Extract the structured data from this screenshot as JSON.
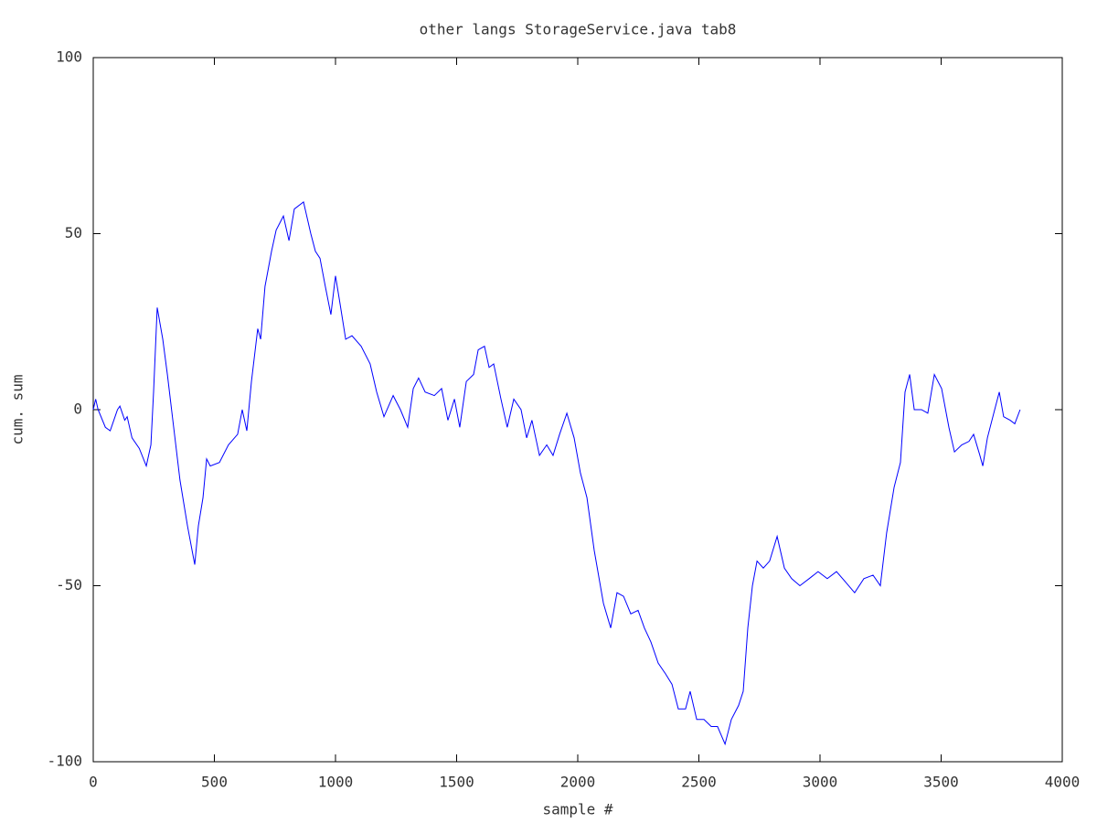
{
  "chart_data": {
    "type": "line",
    "title": "other langs StorageService.java tab8",
    "x_label": "sample #",
    "y_label": "cum. sum",
    "xlim": [
      0,
      4000
    ],
    "ylim": [
      -100,
      100
    ],
    "xticks": [
      0,
      500,
      1000,
      1500,
      2000,
      2500,
      3000,
      3500,
      4000
    ],
    "yticks": [
      -100,
      -50,
      0,
      50,
      100
    ],
    "grid": false,
    "series": [
      {
        "color": "#0000ff",
        "x": [
          0,
          10,
          20,
          50,
          70,
          90,
          100,
          110,
          130,
          140,
          160,
          190,
          219,
          238,
          249,
          264,
          287,
          306,
          332,
          358,
          389,
          408,
          419,
          434,
          453,
          468,
          483,
          521,
          558,
          596,
          615,
          634,
          653,
          679,
          691,
          709,
          736,
          755,
          785,
          808,
          830,
          868,
          898,
          917,
          936,
          958,
          981,
          1000,
          1019,
          1042,
          1068,
          1106,
          1143,
          1170,
          1200,
          1238,
          1268,
          1298,
          1321,
          1343,
          1370,
          1408,
          1438,
          1464,
          1491,
          1513,
          1540,
          1570,
          1589,
          1615,
          1634,
          1653,
          1683,
          1709,
          1736,
          1766,
          1789,
          1811,
          1842,
          1872,
          1898,
          1925,
          1955,
          1985,
          2011,
          2038,
          2068,
          2106,
          2136,
          2162,
          2189,
          2219,
          2249,
          2275,
          2302,
          2332,
          2362,
          2389,
          2415,
          2445,
          2464,
          2491,
          2521,
          2551,
          2577,
          2608,
          2634,
          2664,
          2683,
          2702,
          2721,
          2740,
          2766,
          2792,
          2823,
          2853,
          2883,
          2917,
          2955,
          2992,
          3030,
          3068,
          3106,
          3143,
          3181,
          3219,
          3249,
          3275,
          3306,
          3332,
          3351,
          3370,
          3389,
          3419,
          3445,
          3472,
          3502,
          3532,
          3555,
          3585,
          3615,
          3634,
          3660,
          3672,
          3691,
          3721,
          3740,
          3758,
          3785,
          3804,
          3826
        ],
        "values": [
          0,
          3,
          0,
          -5,
          -6,
          -2,
          0,
          1,
          -3,
          -2,
          -8,
          -11,
          -16,
          -10,
          5,
          29,
          20,
          10,
          -5,
          -20,
          -33,
          -40,
          -44,
          -33,
          -25,
          -14,
          -16,
          -15,
          -10,
          -7,
          0,
          -6,
          8,
          23,
          20,
          35,
          45,
          51,
          55,
          48,
          57,
          59,
          50,
          45,
          43,
          35,
          27,
          38,
          30,
          20,
          21,
          18,
          13,
          5,
          -2,
          4,
          0,
          -5,
          6,
          9,
          5,
          4,
          6,
          -3,
          3,
          -5,
          8,
          10,
          17,
          18,
          12,
          13,
          3,
          -5,
          3,
          0,
          -8,
          -3,
          -13,
          -10,
          -13,
          -7,
          -1,
          -8,
          -18,
          -25,
          -40,
          -55,
          -62,
          -52,
          -53,
          -58,
          -57,
          -62,
          -66,
          -72,
          -75,
          -78,
          -85,
          -85,
          -80,
          -88,
          -88,
          -90,
          -90,
          -95,
          -88,
          -84,
          -80,
          -62,
          -50,
          -43,
          -45,
          -43,
          -36,
          -45,
          -48,
          -50,
          -48,
          -46,
          -48,
          -46,
          -49,
          -52,
          -48,
          -47,
          -50,
          -35,
          -22,
          -15,
          5,
          10,
          0,
          0,
          -1,
          10,
          6,
          -5,
          -12,
          -10,
          -9,
          -7,
          -13,
          -16,
          -8,
          0,
          5,
          -2,
          -3,
          -4,
          0
        ]
      }
    ]
  }
}
